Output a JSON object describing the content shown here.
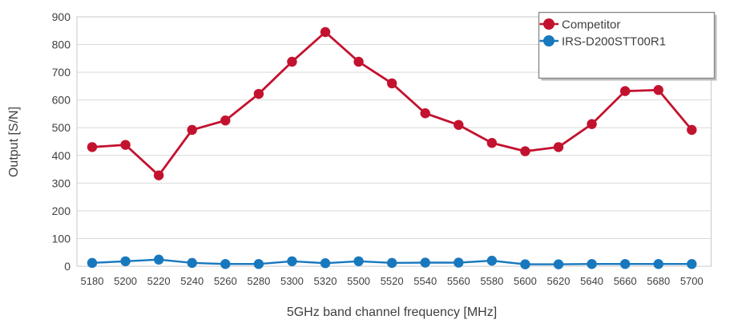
{
  "chart_data": {
    "type": "line",
    "title": "",
    "xlabel": "5GHz band channel frequency [MHz]",
    "ylabel": "Output [S/N]",
    "ylim": [
      0,
      900
    ],
    "ytick_step": 100,
    "grid": true,
    "legend_position": "top-right",
    "categories": [
      "5180",
      "5200",
      "5220",
      "5240",
      "5260",
      "5280",
      "5300",
      "5320",
      "5500",
      "5520",
      "5540",
      "5560",
      "5580",
      "5600",
      "5620",
      "5640",
      "5660",
      "5680",
      "5700"
    ],
    "series": [
      {
        "name": "Competitor",
        "color": "#C3122F",
        "values": [
          430,
          438,
          328,
          492,
          526,
          622,
          738,
          845,
          738,
          660,
          552,
          510,
          445,
          415,
          430,
          513,
          632,
          636,
          492
        ]
      },
      {
        "name": "IRS-D200STT00R1",
        "color": "#1878BE",
        "values": [
          12,
          18,
          24,
          12,
          8,
          8,
          18,
          11,
          18,
          12,
          13,
          13,
          20,
          7,
          7,
          8,
          8,
          8,
          8
        ]
      }
    ]
  },
  "colors": {
    "background": "#FFFFFF",
    "gridline": "#D9D9D9",
    "plot_border": "#C9C9C9",
    "text": "#3F3F3F",
    "legend_border": "#8C8C8C",
    "legend_shadow": "#BDBDBD",
    "series_competitor": "#C3122F",
    "series_irs": "#1878BE"
  }
}
